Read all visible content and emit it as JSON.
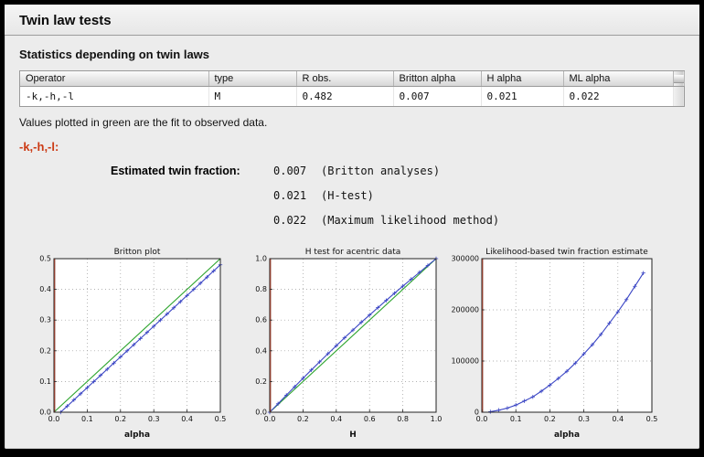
{
  "window": {
    "title": "Twin law tests"
  },
  "section": {
    "title": "Statistics depending on twin laws"
  },
  "table": {
    "columns": [
      "Operator",
      "type",
      "R obs.",
      "Britton alpha",
      "H alpha",
      "ML alpha"
    ],
    "rows": [
      [
        "-k,-h,-l",
        "M",
        "0.482",
        "0.007",
        "0.021",
        "0.022"
      ]
    ]
  },
  "note": "Values plotted in green are the fit to observed data.",
  "operator_heading": "-k,-h,-l:",
  "twin_fraction": {
    "label": "Estimated twin fraction:",
    "entries": [
      {
        "value": "0.007",
        "method": "(Britton analyses)"
      },
      {
        "value": "0.021",
        "method": "(H-test)"
      },
      {
        "value": "0.022",
        "method": "(Maximum likelihood method)"
      }
    ]
  },
  "colors": {
    "accent_red": "#cc3a14",
    "fit_green": "#2aa32a",
    "data_blue": "#3a45c4",
    "axis_maroon": "#8a3b2c",
    "grid": "#9a9a9a"
  },
  "chart_data": [
    {
      "type": "line",
      "title": "Britton plot",
      "xlabel": "alpha",
      "ylabel": "",
      "xlim": [
        0,
        0.5
      ],
      "ylim": [
        0,
        0.5
      ],
      "xticks": [
        0,
        0.1,
        0.2,
        0.3,
        0.4,
        0.5
      ],
      "xtick_labels": [
        "0.0",
        "0.1",
        "0.2",
        "0.3",
        "0.4",
        "0.5"
      ],
      "yticks": [
        0,
        0.1,
        0.2,
        0.3,
        0.4,
        0.5
      ],
      "ytick_labels": [
        "0.0",
        "0.1",
        "0.2",
        "0.3",
        "0.4",
        "0.5"
      ],
      "grid": true,
      "legend": "none",
      "series": [
        {
          "name": "fit",
          "color": "#2aa32a",
          "marker": "none",
          "x": [
            0,
            0.5
          ],
          "y": [
            0,
            0.5
          ]
        },
        {
          "name": "observed",
          "color": "#3a45c4",
          "marker": "plus",
          "x": [
            0.02,
            0.04,
            0.06,
            0.08,
            0.1,
            0.12,
            0.14,
            0.16,
            0.18,
            0.2,
            0.22,
            0.24,
            0.26,
            0.28,
            0.3,
            0.32,
            0.34,
            0.36,
            0.38,
            0.4,
            0.42,
            0.44,
            0.46,
            0.48,
            0.5
          ],
          "y": [
            0,
            0.02,
            0.04,
            0.06,
            0.08,
            0.1,
            0.12,
            0.14,
            0.16,
            0.18,
            0.2,
            0.22,
            0.24,
            0.26,
            0.28,
            0.3,
            0.32,
            0.34,
            0.36,
            0.38,
            0.4,
            0.42,
            0.44,
            0.46,
            0.48
          ]
        }
      ]
    },
    {
      "type": "line",
      "title": "H test for acentric data",
      "xlabel": "H",
      "ylabel": "",
      "xlim": [
        0,
        1
      ],
      "ylim": [
        0,
        1
      ],
      "xticks": [
        0,
        0.2,
        0.4,
        0.6,
        0.8,
        1.0
      ],
      "xtick_labels": [
        "0.0",
        "0.2",
        "0.4",
        "0.6",
        "0.8",
        "1.0"
      ],
      "yticks": [
        0,
        0.2,
        0.4,
        0.6,
        0.8,
        1.0
      ],
      "ytick_labels": [
        "0.0",
        "0.2",
        "0.4",
        "0.6",
        "0.8",
        "1.0"
      ],
      "grid": true,
      "legend": "none",
      "series": [
        {
          "name": "fit",
          "color": "#2aa32a",
          "marker": "none",
          "x": [
            0,
            1
          ],
          "y": [
            0,
            1
          ]
        },
        {
          "name": "observed",
          "color": "#3a45c4",
          "marker": "plus",
          "x": [
            0,
            0.05,
            0.1,
            0.15,
            0.2,
            0.25,
            0.3,
            0.35,
            0.4,
            0.45,
            0.5,
            0.55,
            0.6,
            0.65,
            0.7,
            0.75,
            0.8,
            0.85,
            0.9,
            0.95,
            1.0
          ],
          "y": [
            0,
            0.055,
            0.111,
            0.166,
            0.221,
            0.275,
            0.328,
            0.381,
            0.433,
            0.485,
            0.535,
            0.585,
            0.633,
            0.681,
            0.728,
            0.775,
            0.821,
            0.866,
            0.911,
            0.956,
            1.0
          ]
        }
      ]
    },
    {
      "type": "line",
      "title": "Likelihood-based twin fraction estimate",
      "xlabel": "alpha",
      "ylabel": "",
      "xlim": [
        0,
        0.5
      ],
      "ylim": [
        0,
        300000
      ],
      "xticks": [
        0,
        0.1,
        0.2,
        0.3,
        0.4,
        0.5
      ],
      "xtick_labels": [
        "0.0",
        "0.1",
        "0.2",
        "0.3",
        "0.4",
        "0.5"
      ],
      "yticks": [
        0,
        100000,
        200000,
        300000
      ],
      "ytick_labels": [
        "0",
        "100000",
        "200000",
        "300000"
      ],
      "grid": true,
      "legend": "none",
      "series": [
        {
          "name": "likelihood",
          "color": "#3a45c4",
          "marker": "plus",
          "x": [
            0.025,
            0.05,
            0.075,
            0.1,
            0.125,
            0.15,
            0.175,
            0.2,
            0.225,
            0.25,
            0.275,
            0.3,
            0.325,
            0.35,
            0.375,
            0.4,
            0.425,
            0.45,
            0.475
          ],
          "y": [
            1000,
            4000,
            8000,
            14000,
            22000,
            30000,
            41000,
            53000,
            66000,
            80000,
            96000,
            114000,
            132000,
            152000,
            174000,
            196000,
            220000,
            246000,
            272000
          ]
        }
      ]
    }
  ]
}
